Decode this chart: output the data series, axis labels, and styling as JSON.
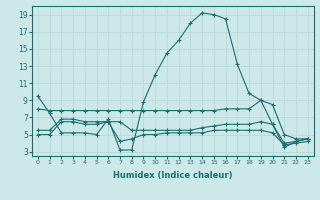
{
  "xlabel": "Humidex (Indice chaleur)",
  "ylabel": "",
  "bg_color": "#cce8e8",
  "grid_color": "#b0d0d0",
  "line_color": "#1a6e6e",
  "xlim": [
    -0.5,
    23.5
  ],
  "ylim": [
    2.5,
    20
  ],
  "yticks": [
    3,
    5,
    7,
    9,
    11,
    13,
    15,
    17,
    19
  ],
  "xticks": [
    0,
    1,
    2,
    3,
    4,
    5,
    6,
    7,
    8,
    9,
    10,
    11,
    12,
    13,
    14,
    15,
    16,
    17,
    18,
    19,
    20,
    21,
    22,
    23
  ],
  "lines": [
    {
      "x": [
        0,
        1,
        2,
        3,
        4,
        5,
        6,
        7,
        8,
        9,
        10,
        11,
        12,
        13,
        14,
        15,
        16,
        17,
        18,
        19,
        20,
        21,
        22,
        23
      ],
      "y": [
        9.5,
        7.5,
        5.2,
        5.2,
        5.2,
        5.0,
        6.8,
        3.2,
        3.2,
        8.8,
        12.0,
        14.5,
        16.0,
        18.0,
        19.2,
        19.0,
        18.5,
        13.2,
        9.8,
        9.0,
        6.2,
        3.5,
        4.2,
        4.5
      ]
    },
    {
      "x": [
        0,
        1,
        2,
        3,
        4,
        5,
        6,
        7,
        8,
        9,
        10,
        11,
        12,
        13,
        14,
        15,
        16,
        17,
        18,
        19,
        20,
        21,
        22,
        23
      ],
      "y": [
        8.0,
        7.8,
        7.8,
        7.8,
        7.8,
        7.8,
        7.8,
        7.8,
        7.8,
        7.8,
        7.8,
        7.8,
        7.8,
        7.8,
        7.8,
        7.8,
        8.0,
        8.0,
        8.0,
        9.0,
        8.5,
        5.0,
        4.5,
        4.5
      ]
    },
    {
      "x": [
        0,
        1,
        2,
        3,
        4,
        5,
        6,
        7,
        8,
        9,
        10,
        11,
        12,
        13,
        14,
        15,
        16,
        17,
        18,
        19,
        20,
        21,
        22,
        23
      ],
      "y": [
        5.5,
        5.5,
        6.8,
        6.8,
        6.5,
        6.5,
        6.5,
        6.5,
        5.5,
        5.5,
        5.5,
        5.5,
        5.5,
        5.5,
        5.8,
        6.0,
        6.2,
        6.2,
        6.2,
        6.5,
        6.2,
        4.0,
        4.2,
        4.5
      ]
    },
    {
      "x": [
        0,
        1,
        2,
        3,
        4,
        5,
        6,
        7,
        8,
        9,
        10,
        11,
        12,
        13,
        14,
        15,
        16,
        17,
        18,
        19,
        20,
        21,
        22,
        23
      ],
      "y": [
        5.0,
        5.0,
        6.5,
        6.5,
        6.2,
        6.2,
        6.5,
        4.2,
        4.5,
        5.0,
        5.0,
        5.2,
        5.2,
        5.2,
        5.2,
        5.5,
        5.5,
        5.5,
        5.5,
        5.5,
        5.2,
        3.8,
        4.0,
        4.2
      ]
    }
  ]
}
